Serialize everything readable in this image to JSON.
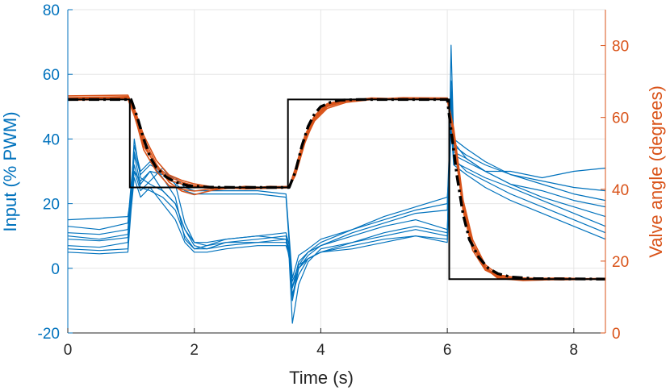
{
  "chart_data": {
    "type": "line",
    "xlabel": "Time (s)",
    "ylabel_left": "Input (% PWM)",
    "ylabel_right": "Valve angle (degrees)",
    "xlim": [
      0,
      8.5
    ],
    "ylim_left": [
      -20,
      80
    ],
    "ylim_right": [
      0,
      90
    ],
    "x_ticks": [
      0,
      2,
      4,
      6,
      8
    ],
    "y_left_ticks": [
      -20,
      0,
      20,
      40,
      60,
      80
    ],
    "y_right_ticks": [
      0,
      20,
      40,
      60,
      80
    ],
    "grid": true,
    "colors": {
      "input": "#0072BD",
      "angle": "#D95319",
      "setpoint": "#000000",
      "model": "#000000",
      "axis": "#262626"
    },
    "setpoint": {
      "axis": "right",
      "style": "solid",
      "x": [
        0,
        0.98,
        0.98,
        3.48,
        3.48,
        6.03,
        6.03,
        8.5
      ],
      "y": [
        65,
        65,
        40.5,
        40.5,
        65,
        65,
        15,
        15
      ]
    },
    "model_response": {
      "axis": "right",
      "style": "dash-dot",
      "x": [
        0,
        1.0,
        1.1,
        1.2,
        1.3,
        1.4,
        1.55,
        1.7,
        1.9,
        2.2,
        2.6,
        3.0,
        3.5,
        3.6,
        3.7,
        3.8,
        3.9,
        4.0,
        4.15,
        4.3,
        4.6,
        5.0,
        6.0,
        6.05,
        6.15,
        6.25,
        6.35,
        6.5,
        6.65,
        6.8,
        7.0,
        7.4,
        8.5
      ],
      "y": [
        65,
        65,
        60,
        54,
        49,
        46,
        43.5,
        42,
        41,
        40.6,
        40.5,
        40.5,
        40.5,
        45,
        52,
        57.5,
        61,
        63,
        64.2,
        64.8,
        65,
        65,
        65,
        58,
        44,
        33,
        26,
        21,
        18,
        16.5,
        15.6,
        15.1,
        15
      ]
    },
    "valve_angle_trials": [
      {
        "x": [
          0,
          0.95,
          1.05,
          1.2,
          1.4,
          1.6,
          1.8,
          2.0,
          2.3,
          2.8,
          3.2,
          3.5,
          3.6,
          3.75,
          3.9,
          4.1,
          4.4,
          4.8,
          5.3,
          6.0,
          6.1,
          6.25,
          6.4,
          6.6,
          6.8,
          7.2,
          7.8,
          8.5
        ],
        "y": [
          65.5,
          65.8,
          62,
          53,
          46,
          42.5,
          41.5,
          40.8,
          40.5,
          40.3,
          40.6,
          40.8,
          45,
          54,
          60,
          63.5,
          64.8,
          65.2,
          65,
          65.3,
          55,
          35,
          24,
          18,
          16,
          15,
          14.8,
          15
        ]
      },
      {
        "x": [
          0,
          0.95,
          1.05,
          1.2,
          1.4,
          1.6,
          1.8,
          2.0,
          2.3,
          2.8,
          3.2,
          3.5,
          3.6,
          3.75,
          3.9,
          4.1,
          4.4,
          4.8,
          5.3,
          6.0,
          6.1,
          6.25,
          6.4,
          6.6,
          6.8,
          7.2,
          7.8,
          8.5
        ],
        "y": [
          65.2,
          65.5,
          61,
          51,
          45,
          41,
          40,
          39.5,
          40.2,
          40.6,
          40.4,
          40.5,
          44,
          53,
          59.5,
          63,
          64.5,
          65.4,
          65.1,
          65,
          56,
          36,
          25,
          18.5,
          15.5,
          14.8,
          15.2,
          15
        ]
      },
      {
        "x": [
          0,
          0.95,
          1.05,
          1.2,
          1.4,
          1.6,
          1.8,
          2.0,
          2.3,
          2.8,
          3.2,
          3.5,
          3.6,
          3.75,
          3.9,
          4.1,
          4.4,
          4.8,
          5.3,
          6.0,
          6.1,
          6.25,
          6.4,
          6.6,
          6.8,
          7.2,
          7.8,
          8.5
        ],
        "y": [
          64.8,
          65.1,
          60.5,
          52,
          46.5,
          43.5,
          42,
          41,
          40.4,
          40.2,
          40.8,
          40.6,
          46,
          55,
          60.5,
          63.8,
          65,
          65.1,
          65.4,
          65.2,
          54,
          34,
          23,
          17.5,
          15.8,
          15.3,
          15,
          15.2
        ]
      },
      {
        "x": [
          0,
          0.95,
          1.05,
          1.2,
          1.4,
          1.6,
          1.8,
          2.0,
          2.3,
          2.8,
          3.2,
          3.5,
          3.6,
          3.75,
          3.9,
          4.1,
          4.4,
          4.8,
          5.3,
          6.0,
          6.1,
          6.25,
          6.4,
          6.6,
          6.8,
          7.2,
          7.8,
          8.5
        ],
        "y": [
          65,
          65.4,
          61.5,
          54,
          47,
          42,
          39.5,
          38.5,
          39.8,
          40.8,
          40.4,
          40.7,
          45.5,
          54.5,
          60,
          63.2,
          64.6,
          65.3,
          65.2,
          65.1,
          55.5,
          35.5,
          24.5,
          18,
          15.2,
          14.6,
          14.9,
          15.1
        ]
      },
      {
        "x": [
          0,
          0.95,
          1.05,
          1.2,
          1.4,
          1.6,
          1.8,
          2.0,
          2.3,
          2.8,
          3.2,
          3.5,
          3.6,
          3.75,
          3.9,
          4.1,
          4.4,
          4.8,
          5.3,
          6.0,
          6.1,
          6.25,
          6.4,
          6.6,
          6.8,
          7.2,
          7.8,
          8.5
        ],
        "y": [
          66,
          66.2,
          62.5,
          55,
          48,
          44,
          42.5,
          41.5,
          40.6,
          40.1,
          40.3,
          40.4,
          44.5,
          53.5,
          59,
          62.5,
          64.2,
          65,
          65.5,
          65.4,
          57,
          37,
          26,
          19,
          16.2,
          15.1,
          15.3,
          14.9
        ]
      }
    ],
    "input_trials": [
      {
        "x": [
          0,
          0.5,
          0.95,
          1.0,
          1.05,
          1.15,
          1.3,
          1.5,
          1.7,
          1.85,
          2.0,
          2.2,
          2.5,
          3.0,
          3.45,
          3.5,
          3.55,
          3.65,
          3.8,
          4.0,
          4.5,
          5.0,
          5.5,
          6.0,
          6.03,
          6.06,
          6.1,
          6.3,
          6.6,
          7.0,
          7.5,
          8.0,
          8.5
        ],
        "y": [
          6,
          5.5,
          6,
          22,
          35,
          26,
          30,
          24,
          20,
          12,
          7,
          6,
          8,
          9,
          10,
          5,
          -8,
          -2,
          3,
          5,
          7,
          9,
          10,
          9,
          30,
          52,
          36,
          34,
          30,
          26,
          22,
          19,
          16
        ]
      },
      {
        "x": [
          0,
          0.5,
          0.95,
          1.0,
          1.05,
          1.15,
          1.3,
          1.5,
          1.7,
          1.85,
          2.0,
          2.2,
          2.5,
          3.0,
          3.45,
          3.5,
          3.55,
          3.65,
          3.8,
          4.0,
          4.5,
          5.0,
          5.5,
          6.0,
          6.03,
          6.06,
          6.1,
          6.3,
          6.6,
          7.0,
          7.5,
          8.0,
          8.5
        ],
        "y": [
          9,
          8.5,
          9.5,
          20,
          30,
          24,
          27,
          31,
          26,
          14,
          8,
          7,
          9,
          10,
          9,
          3,
          -17,
          -5,
          2,
          6,
          8,
          10,
          12,
          10,
          34,
          69,
          40,
          37,
          33,
          29,
          26,
          23,
          21
        ]
      },
      {
        "x": [
          0,
          0.5,
          0.95,
          1.0,
          1.05,
          1.15,
          1.3,
          1.5,
          1.7,
          1.85,
          2.0,
          2.2,
          2.5,
          3.0,
          3.45,
          3.5,
          3.55,
          3.65,
          3.8,
          4.0,
          4.5,
          5.0,
          5.5,
          6.0,
          6.03,
          6.06,
          6.1,
          6.3,
          6.6,
          7.0,
          7.5,
          8.0,
          8.5
        ],
        "y": [
          11,
          10.5,
          12,
          24,
          38,
          30,
          33,
          28,
          22,
          9,
          6,
          7,
          8,
          8,
          9,
          6,
          -10,
          0,
          4,
          7,
          10,
          13,
          15,
          12,
          28,
          48,
          33,
          31,
          28,
          25,
          21,
          17,
          13
        ]
      },
      {
        "x": [
          0,
          0.5,
          0.95,
          1.0,
          1.05,
          1.15,
          1.3,
          1.5,
          1.7,
          1.85,
          2.0,
          2.2,
          2.5,
          3.0,
          3.45,
          3.5,
          3.55,
          3.65,
          3.8,
          4.0,
          4.5,
          5.0,
          5.5,
          6.0,
          6.03,
          6.06,
          6.1,
          6.3,
          6.6,
          7.0,
          7.5,
          8.0,
          8.5
        ],
        "y": [
          13,
          12,
          14,
          26,
          36,
          29,
          32,
          30,
          26,
          24,
          23,
          23,
          23,
          23,
          22,
          8,
          -6,
          2,
          5,
          8,
          12,
          15,
          18,
          20,
          36,
          58,
          39,
          34,
          30,
          26,
          24,
          21,
          19
        ]
      },
      {
        "x": [
          0,
          0.5,
          0.95,
          1.0,
          1.05,
          1.15,
          1.3,
          1.5,
          1.7,
          1.85,
          2.0,
          2.2,
          2.5,
          3.0,
          3.45,
          3.5,
          3.55,
          3.65,
          3.8,
          4.0,
          4.5,
          5.0,
          5.5,
          6.0,
          6.03,
          6.06,
          6.1,
          6.3,
          6.6,
          7.0,
          7.5,
          8.0,
          8.5
        ],
        "y": [
          15,
          15.5,
          16,
          23,
          30,
          27,
          30,
          29,
          28,
          25,
          24,
          24,
          24,
          24,
          23,
          10,
          -3,
          4,
          6,
          9,
          12,
          16,
          19,
          22,
          30,
          45,
          35,
          33,
          30,
          30,
          28,
          30,
          31
        ]
      },
      {
        "x": [
          0,
          0.5,
          0.95,
          1.0,
          1.05,
          1.15,
          1.3,
          1.5,
          1.7,
          1.85,
          2.0,
          2.2,
          2.5,
          3.0,
          3.45,
          3.5,
          3.55,
          3.65,
          3.8,
          4.0,
          4.5,
          5.0,
          5.5,
          6.0,
          6.03,
          6.06,
          6.1,
          6.3,
          6.6,
          7.0,
          7.5,
          8.0,
          8.5
        ],
        "y": [
          5,
          4.5,
          5,
          18,
          28,
          22,
          25,
          20,
          15,
          8,
          5,
          5,
          6,
          7,
          7,
          4,
          -4,
          1,
          3,
          5,
          6,
          8,
          10,
          8,
          24,
          44,
          32,
          29,
          25,
          21,
          17,
          13,
          9
        ]
      },
      {
        "x": [
          0,
          0.5,
          0.95,
          1.0,
          1.05,
          1.15,
          1.3,
          1.5,
          1.7,
          1.85,
          2.0,
          2.2,
          2.5,
          3.0,
          3.45,
          3.5,
          3.55,
          3.65,
          3.8,
          4.0,
          4.5,
          5.0,
          5.5,
          6.0,
          6.03,
          6.06,
          6.1,
          6.3,
          6.6,
          7.0,
          7.5,
          8.0,
          8.5
        ],
        "y": [
          10,
          9,
          10.5,
          22,
          40,
          28,
          26,
          24,
          20,
          12,
          8,
          8,
          9,
          10,
          11,
          7,
          -9,
          1,
          5,
          7,
          11,
          14,
          17,
          18,
          33,
          55,
          38,
          35,
          32,
          29,
          27,
          25,
          24
        ]
      },
      {
        "x": [
          0,
          0.5,
          0.95,
          1.0,
          1.05,
          1.15,
          1.3,
          1.5,
          1.7,
          1.85,
          2.0,
          2.2,
          2.5,
          3.0,
          3.45,
          3.5,
          3.55,
          3.65,
          3.8,
          4.0,
          4.5,
          5.0,
          5.5,
          6.0,
          6.03,
          6.06,
          6.1,
          6.3,
          6.6,
          7.0,
          7.5,
          8.0,
          8.5
        ],
        "y": [
          7,
          6.5,
          8,
          20,
          32,
          25,
          24,
          22,
          18,
          10,
          6,
          6,
          7,
          8,
          8,
          5,
          -6,
          0,
          3,
          5,
          8,
          11,
          13,
          11,
          27,
          50,
          34,
          30,
          27,
          23,
          19,
          15,
          11
        ]
      }
    ]
  }
}
